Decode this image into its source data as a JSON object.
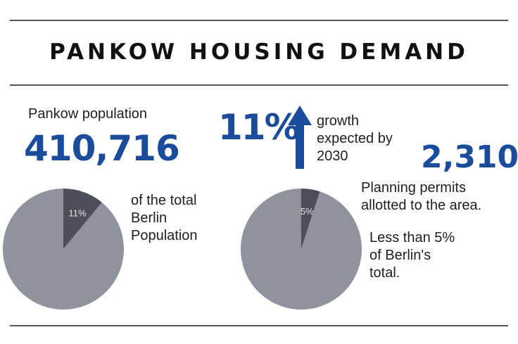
{
  "title": "PANKOW HOUSING DEMAND",
  "population": {
    "label": "Pankow population",
    "value": "410,716",
    "caption_lines": [
      "of the total",
      "Berlin",
      "Population"
    ]
  },
  "growth": {
    "value": "11%",
    "caption_lines": [
      "growth",
      "expected by",
      "2030"
    ]
  },
  "permits": {
    "value": "2,310",
    "caption_lines": [
      "Planning permits",
      "allotted to the area."
    ],
    "note_lines": [
      "Less than 5%",
      "of Berlin's",
      "total."
    ]
  },
  "colors": {
    "accent": "#1b4b9b",
    "pie_slice": "#4b4f59",
    "pie_rest": "#8f939e",
    "rule": "#555555"
  },
  "chart_data": [
    {
      "type": "pie",
      "slices": [
        {
          "label": "11%",
          "value": 11
        },
        {
          "value": 89
        }
      ]
    },
    {
      "type": "pie",
      "slices": [
        {
          "label": "5%",
          "value": 5
        },
        {
          "value": 95
        }
      ]
    }
  ]
}
